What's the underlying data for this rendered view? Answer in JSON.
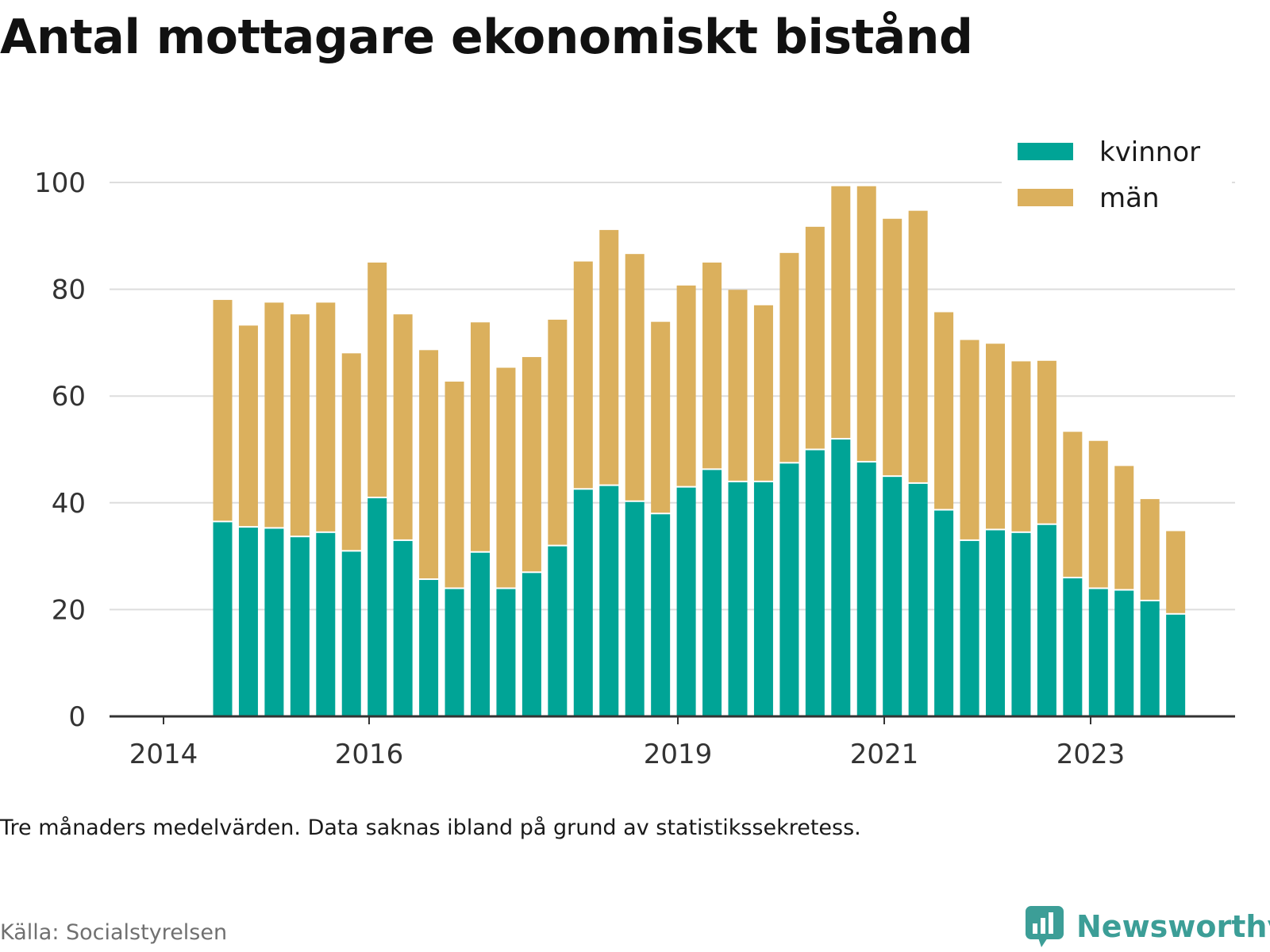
{
  "title": "Antal mottagare ekonomiskt bistånd",
  "note": "Tre månaders medelvärden. Data saknas ibland på grund av statistikssekretess.",
  "source": "Källa: Socialstyrelsen",
  "brand": "Newsworthy",
  "colors": {
    "kvinnor": "#00a496",
    "man": "#dbb05d",
    "grid": "#dddddd",
    "axis": "#333333",
    "brand": "#3c9e97"
  },
  "chart_data": {
    "type": "bar",
    "stacked": true,
    "legend_position": "top-right",
    "grid": true,
    "ylim": [
      0,
      100
    ],
    "yticks": [
      0,
      20,
      40,
      60,
      80,
      100
    ],
    "xtick_labels": [
      "2014",
      "2016",
      "2019",
      "2021",
      "2023"
    ],
    "legend": [
      {
        "name": "kvinnor",
        "color": "#00a496"
      },
      {
        "name": "män",
        "color": "#dbb05d"
      }
    ],
    "series": [
      {
        "name": "kvinnor",
        "color": "#00a496",
        "values": [
          36.5,
          35.5,
          35.3,
          33.7,
          34.5,
          31.0,
          41.0,
          33.0,
          25.7,
          24.0,
          30.8,
          24.0,
          27.0,
          32.0,
          42.6,
          43.3,
          40.3,
          38.0,
          43.0,
          46.3,
          44.0,
          44.0,
          47.5,
          50.0,
          52.0,
          47.7,
          45.0,
          43.7,
          38.7,
          33.0,
          35.0,
          34.5,
          36.0,
          26.0,
          24.0,
          23.7,
          21.7,
          19.2
        ]
      },
      {
        "name": "män",
        "color": "#dbb05d",
        "values": [
          41.5,
          37.7,
          42.2,
          41.6,
          43.0,
          37.0,
          44.0,
          42.3,
          42.9,
          38.7,
          43.0,
          41.3,
          40.3,
          42.3,
          42.6,
          47.8,
          46.3,
          35.9,
          37.7,
          38.7,
          35.9,
          33.0,
          39.3,
          41.7,
          47.3,
          51.6,
          48.2,
          51.0,
          37.0,
          37.5,
          34.8,
          32.0,
          30.6,
          27.3,
          27.6,
          23.2,
          19.0,
          15.5
        ]
      }
    ]
  }
}
